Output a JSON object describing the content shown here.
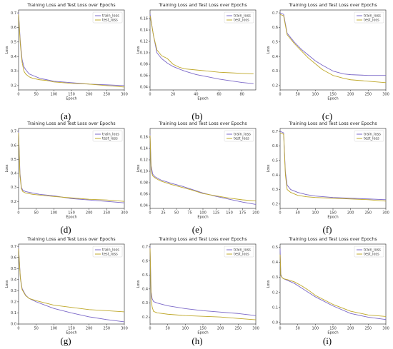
{
  "colors": {
    "train": "#7b68c8",
    "test": "#bfa82a"
  },
  "chart_data": [
    {
      "panel": "(a)",
      "type": "line",
      "title": "Training Loss and Test Loss over Epochs",
      "xlabel": "Epoch",
      "ylabel": "Loss",
      "xlim": [
        0,
        300
      ],
      "ylim": [
        0.17,
        0.72
      ],
      "xticks": [
        "0",
        "50",
        "100",
        "150",
        "200",
        "250",
        "300"
      ],
      "yticks": [
        "0.2",
        "0.3",
        "0.4",
        "0.5",
        "0.6",
        "0.7"
      ],
      "legend": "top-right",
      "grid": false,
      "series": [
        {
          "name": "train_loss",
          "x": [
            0,
            5,
            10,
            15,
            20,
            30,
            40,
            60,
            80,
            100,
            150,
            200,
            250,
            300
          ],
          "y": [
            0.7,
            0.5,
            0.38,
            0.33,
            0.31,
            0.28,
            0.27,
            0.25,
            0.24,
            0.23,
            0.22,
            0.21,
            0.205,
            0.2
          ]
        },
        {
          "name": "test_loss",
          "x": [
            0,
            5,
            10,
            15,
            20,
            30,
            40,
            60,
            80,
            100,
            150,
            200,
            250,
            300
          ],
          "y": [
            0.69,
            0.48,
            0.36,
            0.3,
            0.28,
            0.26,
            0.25,
            0.24,
            0.235,
            0.225,
            0.215,
            0.21,
            0.2,
            0.19
          ]
        }
      ]
    },
    {
      "panel": "(b)",
      "type": "line",
      "title": "Training Loss and Test Loss over Epochs",
      "xlabel": "Epoch",
      "ylabel": "Loss",
      "xlim": [
        0,
        92
      ],
      "ylim": [
        0.035,
        0.175
      ],
      "xticks": [
        "0",
        "20",
        "40",
        "60",
        "80"
      ],
      "yticks": [
        "0.04",
        "0.06",
        "0.08",
        "0.10",
        "0.12",
        "0.14",
        "0.16"
      ],
      "legend": "top-right",
      "grid": false,
      "series": [
        {
          "name": "train_loss",
          "x": [
            0,
            3,
            6,
            10,
            15,
            20,
            25,
            30,
            40,
            50,
            60,
            70,
            80,
            90
          ],
          "y": [
            0.168,
            0.13,
            0.1,
            0.09,
            0.082,
            0.076,
            0.072,
            0.068,
            0.062,
            0.058,
            0.054,
            0.051,
            0.048,
            0.046
          ]
        },
        {
          "name": "test_loss",
          "x": [
            0,
            3,
            6,
            10,
            15,
            20,
            25,
            30,
            40,
            50,
            60,
            70,
            80,
            90
          ],
          "y": [
            0.165,
            0.13,
            0.105,
            0.095,
            0.09,
            0.08,
            0.075,
            0.072,
            0.07,
            0.068,
            0.066,
            0.065,
            0.064,
            0.063
          ]
        }
      ]
    },
    {
      "panel": "(c)",
      "type": "line",
      "title": "Training Loss and Test Loss over Epochs",
      "xlabel": "Epoch",
      "ylabel": "Loss",
      "xlim": [
        0,
        300
      ],
      "ylim": [
        0.17,
        0.72
      ],
      "xticks": [
        "0",
        "50",
        "100",
        "150",
        "200",
        "250",
        "300"
      ],
      "yticks": [
        "0.2",
        "0.3",
        "0.4",
        "0.5",
        "0.6",
        "0.7"
      ],
      "legend": "top-right",
      "grid": false,
      "series": [
        {
          "name": "train_loss",
          "x": [
            0,
            10,
            20,
            40,
            60,
            80,
            100,
            120,
            150,
            180,
            200,
            250,
            300
          ],
          "y": [
            0.7,
            0.69,
            0.56,
            0.5,
            0.45,
            0.41,
            0.37,
            0.34,
            0.3,
            0.28,
            0.275,
            0.27,
            0.27
          ]
        },
        {
          "name": "test_loss",
          "x": [
            0,
            10,
            20,
            40,
            60,
            80,
            100,
            120,
            150,
            180,
            200,
            250,
            300
          ],
          "y": [
            0.69,
            0.68,
            0.55,
            0.49,
            0.44,
            0.39,
            0.35,
            0.31,
            0.27,
            0.25,
            0.24,
            0.23,
            0.22
          ]
        }
      ]
    },
    {
      "panel": "(d)",
      "type": "line",
      "title": "Training Loss and Test Loss over Epochs",
      "xlabel": "Epoch",
      "ylabel": "Loss",
      "xlim": [
        0,
        300
      ],
      "ylim": [
        0.15,
        0.72
      ],
      "xticks": [
        "0",
        "50",
        "100",
        "150",
        "200",
        "250",
        "300"
      ],
      "yticks": [
        "0.2",
        "0.3",
        "0.4",
        "0.5",
        "0.6",
        "0.7"
      ],
      "legend": "top-right",
      "grid": false,
      "series": [
        {
          "name": "train_loss",
          "x": [
            0,
            4,
            8,
            12,
            20,
            40,
            60,
            100,
            150,
            200,
            250,
            300
          ],
          "y": [
            0.7,
            0.4,
            0.3,
            0.28,
            0.27,
            0.26,
            0.25,
            0.24,
            0.22,
            0.21,
            0.2,
            0.19
          ]
        },
        {
          "name": "test_loss",
          "x": [
            0,
            4,
            8,
            12,
            20,
            40,
            60,
            100,
            150,
            200,
            250,
            300
          ],
          "y": [
            0.69,
            0.38,
            0.29,
            0.27,
            0.26,
            0.25,
            0.245,
            0.235,
            0.225,
            0.215,
            0.21,
            0.2
          ]
        }
      ]
    },
    {
      "panel": "(e)",
      "type": "line",
      "title": "Training Loss and Test Loss over Epochs",
      "xlabel": "Epoch",
      "ylabel": "Loss",
      "xlim": [
        0,
        200
      ],
      "ylim": [
        0.035,
        0.175
      ],
      "xticks": [
        "0",
        "25",
        "50",
        "75",
        "100",
        "125",
        "150",
        "175",
        "200"
      ],
      "yticks": [
        "0.04",
        "0.06",
        "0.08",
        "0.10",
        "0.12",
        "0.14",
        "0.16"
      ],
      "legend": "top-right",
      "grid": false,
      "series": [
        {
          "name": "train_loss",
          "x": [
            0,
            2,
            5,
            10,
            20,
            40,
            60,
            80,
            100,
            125,
            150,
            175,
            200
          ],
          "y": [
            0.165,
            0.11,
            0.095,
            0.09,
            0.085,
            0.079,
            0.074,
            0.068,
            0.062,
            0.056,
            0.051,
            0.046,
            0.042
          ]
        },
        {
          "name": "test_loss",
          "x": [
            0,
            2,
            5,
            10,
            20,
            40,
            60,
            80,
            100,
            125,
            150,
            175,
            200
          ],
          "y": [
            0.163,
            0.1,
            0.092,
            0.088,
            0.083,
            0.077,
            0.072,
            0.067,
            0.061,
            0.057,
            0.053,
            0.05,
            0.048
          ]
        }
      ]
    },
    {
      "panel": "(f)",
      "type": "line",
      "title": "Training Loss and Test Loss over Epochs",
      "xlabel": "Epoch",
      "ylabel": "Loss",
      "xlim": [
        0,
        300
      ],
      "ylim": [
        0.17,
        0.72
      ],
      "xticks": [
        "0",
        "50",
        "100",
        "150",
        "200",
        "250",
        "300"
      ],
      "yticks": [
        "0.2",
        "0.3",
        "0.4",
        "0.5",
        "0.6",
        "0.7"
      ],
      "legend": "top-right",
      "grid": false,
      "series": [
        {
          "name": "train_loss",
          "x": [
            0,
            10,
            15,
            20,
            30,
            50,
            75,
            100,
            150,
            200,
            250,
            300
          ],
          "y": [
            0.7,
            0.69,
            0.42,
            0.33,
            0.3,
            0.28,
            0.265,
            0.255,
            0.245,
            0.24,
            0.235,
            0.23
          ]
        },
        {
          "name": "test_loss",
          "x": [
            0,
            10,
            15,
            20,
            30,
            50,
            75,
            100,
            150,
            200,
            250,
            300
          ],
          "y": [
            0.69,
            0.68,
            0.4,
            0.3,
            0.28,
            0.26,
            0.25,
            0.245,
            0.24,
            0.235,
            0.23,
            0.22
          ]
        }
      ]
    },
    {
      "panel": "(g)",
      "type": "line",
      "title": "Training Loss and Test Loss over Epochs",
      "xlabel": "Epoch",
      "ylabel": "Loss",
      "xlim": [
        0,
        300
      ],
      "ylim": [
        0.0,
        0.72
      ],
      "xticks": [
        "0",
        "50",
        "100",
        "150",
        "200",
        "250",
        "300"
      ],
      "yticks": [
        "0.0",
        "0.1",
        "0.2",
        "0.3",
        "0.4",
        "0.5",
        "0.6",
        "0.7"
      ],
      "legend": "top-right",
      "grid": false,
      "series": [
        {
          "name": "train_loss",
          "x": [
            0,
            5,
            10,
            20,
            30,
            50,
            75,
            100,
            150,
            200,
            250,
            300
          ],
          "y": [
            0.69,
            0.42,
            0.32,
            0.26,
            0.23,
            0.2,
            0.17,
            0.14,
            0.1,
            0.065,
            0.04,
            0.02
          ]
        },
        {
          "name": "test_loss",
          "x": [
            0,
            5,
            10,
            20,
            30,
            50,
            75,
            100,
            150,
            200,
            250,
            300
          ],
          "y": [
            0.68,
            0.41,
            0.31,
            0.255,
            0.23,
            0.21,
            0.19,
            0.17,
            0.15,
            0.13,
            0.12,
            0.11
          ]
        }
      ]
    },
    {
      "panel": "(h)",
      "type": "line",
      "title": "Training Loss and Test Loss over Epochs",
      "xlabel": "Epoch",
      "ylabel": "Loss",
      "xlim": [
        0,
        300
      ],
      "ylim": [
        0.15,
        0.72
      ],
      "xticks": [
        "0",
        "50",
        "100",
        "150",
        "200",
        "250",
        "300"
      ],
      "yticks": [
        "0.2",
        "0.3",
        "0.4",
        "0.5",
        "0.6",
        "0.7"
      ],
      "legend": "top-right",
      "grid": false,
      "series": [
        {
          "name": "train_loss",
          "x": [
            0,
            3,
            6,
            10,
            20,
            50,
            100,
            150,
            200,
            250,
            300
          ],
          "y": [
            0.7,
            0.38,
            0.33,
            0.31,
            0.3,
            0.28,
            0.26,
            0.245,
            0.235,
            0.225,
            0.21
          ]
        },
        {
          "name": "test_loss",
          "x": [
            0,
            3,
            6,
            10,
            20,
            50,
            100,
            150,
            200,
            250,
            300
          ],
          "y": [
            0.69,
            0.33,
            0.27,
            0.24,
            0.23,
            0.22,
            0.21,
            0.205,
            0.2,
            0.19,
            0.18
          ]
        }
      ]
    },
    {
      "panel": "(i)",
      "type": "line",
      "title": "Training Loss and Test Loss over Epochs",
      "xlabel": "Epoch",
      "ylabel": "Loss",
      "xlim": [
        0,
        300
      ],
      "ylim": [
        -0.01,
        0.52
      ],
      "xticks": [
        "0",
        "50",
        "100",
        "150",
        "200",
        "250",
        "300"
      ],
      "yticks": [
        "0.0",
        "0.1",
        "0.2",
        "0.3",
        "0.4",
        "0.5"
      ],
      "legend": "top-right",
      "grid": false,
      "series": [
        {
          "name": "train_loss",
          "x": [
            0,
            2,
            5,
            10,
            20,
            40,
            60,
            80,
            100,
            150,
            200,
            250,
            300
          ],
          "y": [
            0.49,
            0.32,
            0.3,
            0.29,
            0.28,
            0.26,
            0.23,
            0.2,
            0.17,
            0.11,
            0.06,
            0.035,
            0.02
          ]
        },
        {
          "name": "test_loss",
          "x": [
            0,
            2,
            5,
            10,
            20,
            40,
            60,
            80,
            100,
            150,
            200,
            250,
            300
          ],
          "y": [
            0.45,
            0.31,
            0.3,
            0.29,
            0.285,
            0.27,
            0.245,
            0.215,
            0.18,
            0.12,
            0.075,
            0.05,
            0.04
          ]
        }
      ]
    }
  ]
}
